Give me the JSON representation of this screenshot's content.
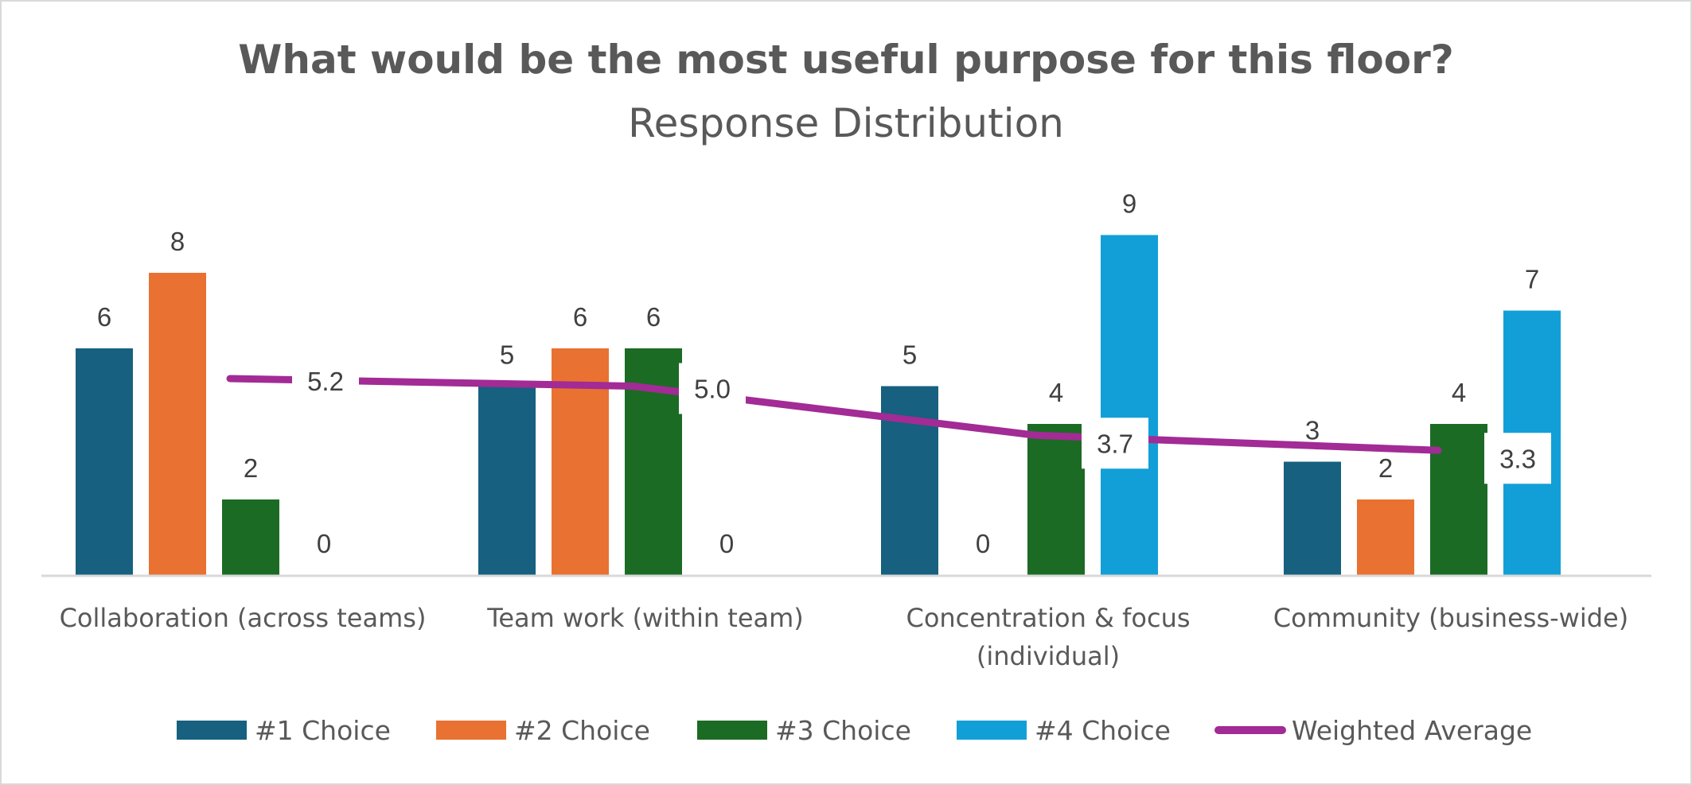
{
  "chart_data": {
    "type": "bar",
    "title": "What would be the most useful purpose for this floor?",
    "subtitle": "Response Distribution",
    "xlabel": "",
    "ylabel": "",
    "ylim": [
      0,
      10
    ],
    "grid": false,
    "legend_position": "bottom",
    "categories": [
      [
        "Collaboration (across teams)"
      ],
      [
        "Team work (within team)"
      ],
      [
        "Concentration & focus",
        "(individual)"
      ],
      [
        "Community (business-wide)"
      ]
    ],
    "series": [
      {
        "name": "#1 Choice",
        "type": "bar",
        "color": "#17607f",
        "values": [
          6,
          5,
          5,
          3
        ]
      },
      {
        "name": "#2 Choice",
        "type": "bar",
        "color": "#e97132",
        "values": [
          8,
          6,
          0,
          2
        ]
      },
      {
        "name": "#3 Choice",
        "type": "bar",
        "color": "#1c6b24",
        "values": [
          2,
          6,
          4,
          4
        ]
      },
      {
        "name": "#4 Choice",
        "type": "bar",
        "color": "#129fd7",
        "values": [
          0,
          0,
          9,
          7
        ]
      },
      {
        "name": "Weighted Average",
        "type": "line",
        "color": "#a22b95",
        "values": [
          5.2,
          5.0,
          3.7,
          3.3
        ],
        "labels": [
          "5.2",
          "5.0",
          "3.7",
          "3.3"
        ]
      }
    ]
  }
}
